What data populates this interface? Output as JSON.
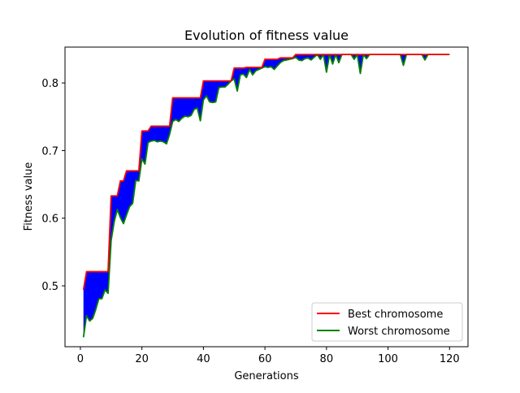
{
  "chart_data": {
    "type": "line",
    "title": "Evolution of fitness value",
    "xlabel": "Generations",
    "ylabel": "Fitness value",
    "xlim": [
      -5,
      126
    ],
    "ylim": [
      0.41,
      0.853
    ],
    "xticks": [
      0,
      20,
      40,
      60,
      80,
      100,
      120
    ],
    "xtick_labels": [
      "0",
      "20",
      "40",
      "60",
      "80",
      "100",
      "120"
    ],
    "yticks": [
      0.5,
      0.6,
      0.7,
      0.8
    ],
    "ytick_labels": [
      "0.5",
      "0.6",
      "0.7",
      "0.8"
    ],
    "grid": false,
    "legend_position": "lower-right",
    "fill_between_color": "#0000ff",
    "series": [
      {
        "name": "Best chromosome",
        "color": "#ff0000",
        "x": [
          1,
          2,
          3,
          4,
          5,
          6,
          7,
          8,
          9,
          10,
          11,
          12,
          13,
          14,
          15,
          16,
          17,
          18,
          19,
          20,
          21,
          22,
          23,
          24,
          25,
          26,
          27,
          28,
          29,
          30,
          31,
          32,
          33,
          34,
          35,
          36,
          37,
          38,
          39,
          40,
          41,
          42,
          43,
          44,
          45,
          46,
          47,
          48,
          49,
          50,
          51,
          52,
          53,
          54,
          55,
          56,
          57,
          58,
          59,
          60,
          61,
          62,
          63,
          64,
          65,
          66,
          67,
          68,
          69,
          70,
          71,
          72,
          73,
          74,
          75,
          76,
          77,
          78,
          79,
          80,
          81,
          82,
          83,
          84,
          85,
          86,
          87,
          88,
          89,
          90,
          91,
          92,
          93,
          94,
          95,
          96,
          97,
          98,
          99,
          100,
          101,
          102,
          103,
          104,
          105,
          106,
          107,
          108,
          109,
          110,
          111,
          112,
          113,
          114,
          115,
          116,
          117,
          118,
          119,
          120
        ],
        "y": [
          0.494,
          0.521,
          0.521,
          0.521,
          0.521,
          0.521,
          0.521,
          0.521,
          0.521,
          0.633,
          0.633,
          0.633,
          0.655,
          0.655,
          0.67,
          0.67,
          0.67,
          0.67,
          0.67,
          0.729,
          0.729,
          0.729,
          0.736,
          0.736,
          0.736,
          0.736,
          0.736,
          0.736,
          0.736,
          0.778,
          0.778,
          0.778,
          0.778,
          0.778,
          0.778,
          0.778,
          0.778,
          0.778,
          0.778,
          0.803,
          0.803,
          0.803,
          0.803,
          0.803,
          0.803,
          0.803,
          0.803,
          0.803,
          0.803,
          0.822,
          0.822,
          0.822,
          0.822,
          0.823,
          0.823,
          0.823,
          0.823,
          0.823,
          0.823,
          0.835,
          0.835,
          0.835,
          0.835,
          0.835,
          0.837,
          0.837,
          0.837,
          0.837,
          0.837,
          0.842,
          0.842,
          0.842,
          0.842,
          0.842,
          0.842,
          0.842,
          0.842,
          0.842,
          0.842,
          0.842,
          0.842,
          0.842,
          0.842,
          0.842,
          0.842,
          0.842,
          0.842,
          0.842,
          0.842,
          0.842,
          0.842,
          0.842,
          0.842,
          0.842,
          0.842,
          0.842,
          0.842,
          0.842,
          0.842,
          0.842,
          0.842,
          0.842,
          0.842,
          0.842,
          0.842,
          0.842,
          0.842,
          0.842,
          0.842,
          0.842,
          0.842,
          0.842,
          0.842,
          0.842,
          0.842,
          0.842,
          0.842,
          0.842,
          0.842,
          0.842
        ]
      },
      {
        "name": "Worst chromosome",
        "color": "#008000",
        "x": [
          1,
          2,
          3,
          4,
          5,
          6,
          7,
          8,
          9,
          10,
          11,
          12,
          13,
          14,
          15,
          16,
          17,
          18,
          19,
          20,
          21,
          22,
          23,
          24,
          25,
          26,
          27,
          28,
          29,
          30,
          31,
          32,
          33,
          34,
          35,
          36,
          37,
          38,
          39,
          40,
          41,
          42,
          43,
          44,
          45,
          46,
          47,
          48,
          49,
          50,
          51,
          52,
          53,
          54,
          55,
          56,
          57,
          58,
          59,
          60,
          61,
          62,
          63,
          64,
          65,
          66,
          67,
          68,
          69,
          70,
          71,
          72,
          73,
          74,
          75,
          76,
          77,
          78,
          79,
          80,
          81,
          82,
          83,
          84,
          85,
          86,
          87,
          88,
          89,
          90,
          91,
          92,
          93,
          94,
          95,
          96,
          97,
          98,
          99,
          100,
          101,
          102,
          103,
          104,
          105,
          106,
          107,
          108,
          109,
          110,
          111,
          112,
          113,
          114,
          115,
          116,
          117,
          118,
          119,
          120
        ],
        "y": [
          0.424,
          0.456,
          0.448,
          0.452,
          0.465,
          0.481,
          0.481,
          0.494,
          0.489,
          0.567,
          0.595,
          0.613,
          0.601,
          0.592,
          0.605,
          0.617,
          0.622,
          0.656,
          0.655,
          0.688,
          0.68,
          0.712,
          0.714,
          0.715,
          0.713,
          0.714,
          0.713,
          0.71,
          0.724,
          0.743,
          0.746,
          0.743,
          0.748,
          0.751,
          0.75,
          0.752,
          0.761,
          0.763,
          0.744,
          0.775,
          0.781,
          0.772,
          0.771,
          0.772,
          0.793,
          0.794,
          0.794,
          0.798,
          0.803,
          0.806,
          0.788,
          0.812,
          0.813,
          0.808,
          0.82,
          0.812,
          0.818,
          0.82,
          0.822,
          0.824,
          0.823,
          0.824,
          0.82,
          0.825,
          0.83,
          0.833,
          0.834,
          0.835,
          0.836,
          0.838,
          0.834,
          0.833,
          0.836,
          0.837,
          0.834,
          0.838,
          0.842,
          0.835,
          0.842,
          0.816,
          0.842,
          0.828,
          0.842,
          0.83,
          0.842,
          0.842,
          0.842,
          0.842,
          0.835,
          0.842,
          0.814,
          0.842,
          0.836,
          0.842,
          0.842,
          0.842,
          0.842,
          0.842,
          0.842,
          0.842,
          0.842,
          0.842,
          0.842,
          0.842,
          0.826,
          0.842,
          0.842,
          0.842,
          0.842,
          0.842,
          0.842,
          0.834,
          0.842,
          0.842,
          0.842,
          0.842,
          0.842,
          0.842,
          0.842,
          0.842
        ]
      }
    ]
  }
}
